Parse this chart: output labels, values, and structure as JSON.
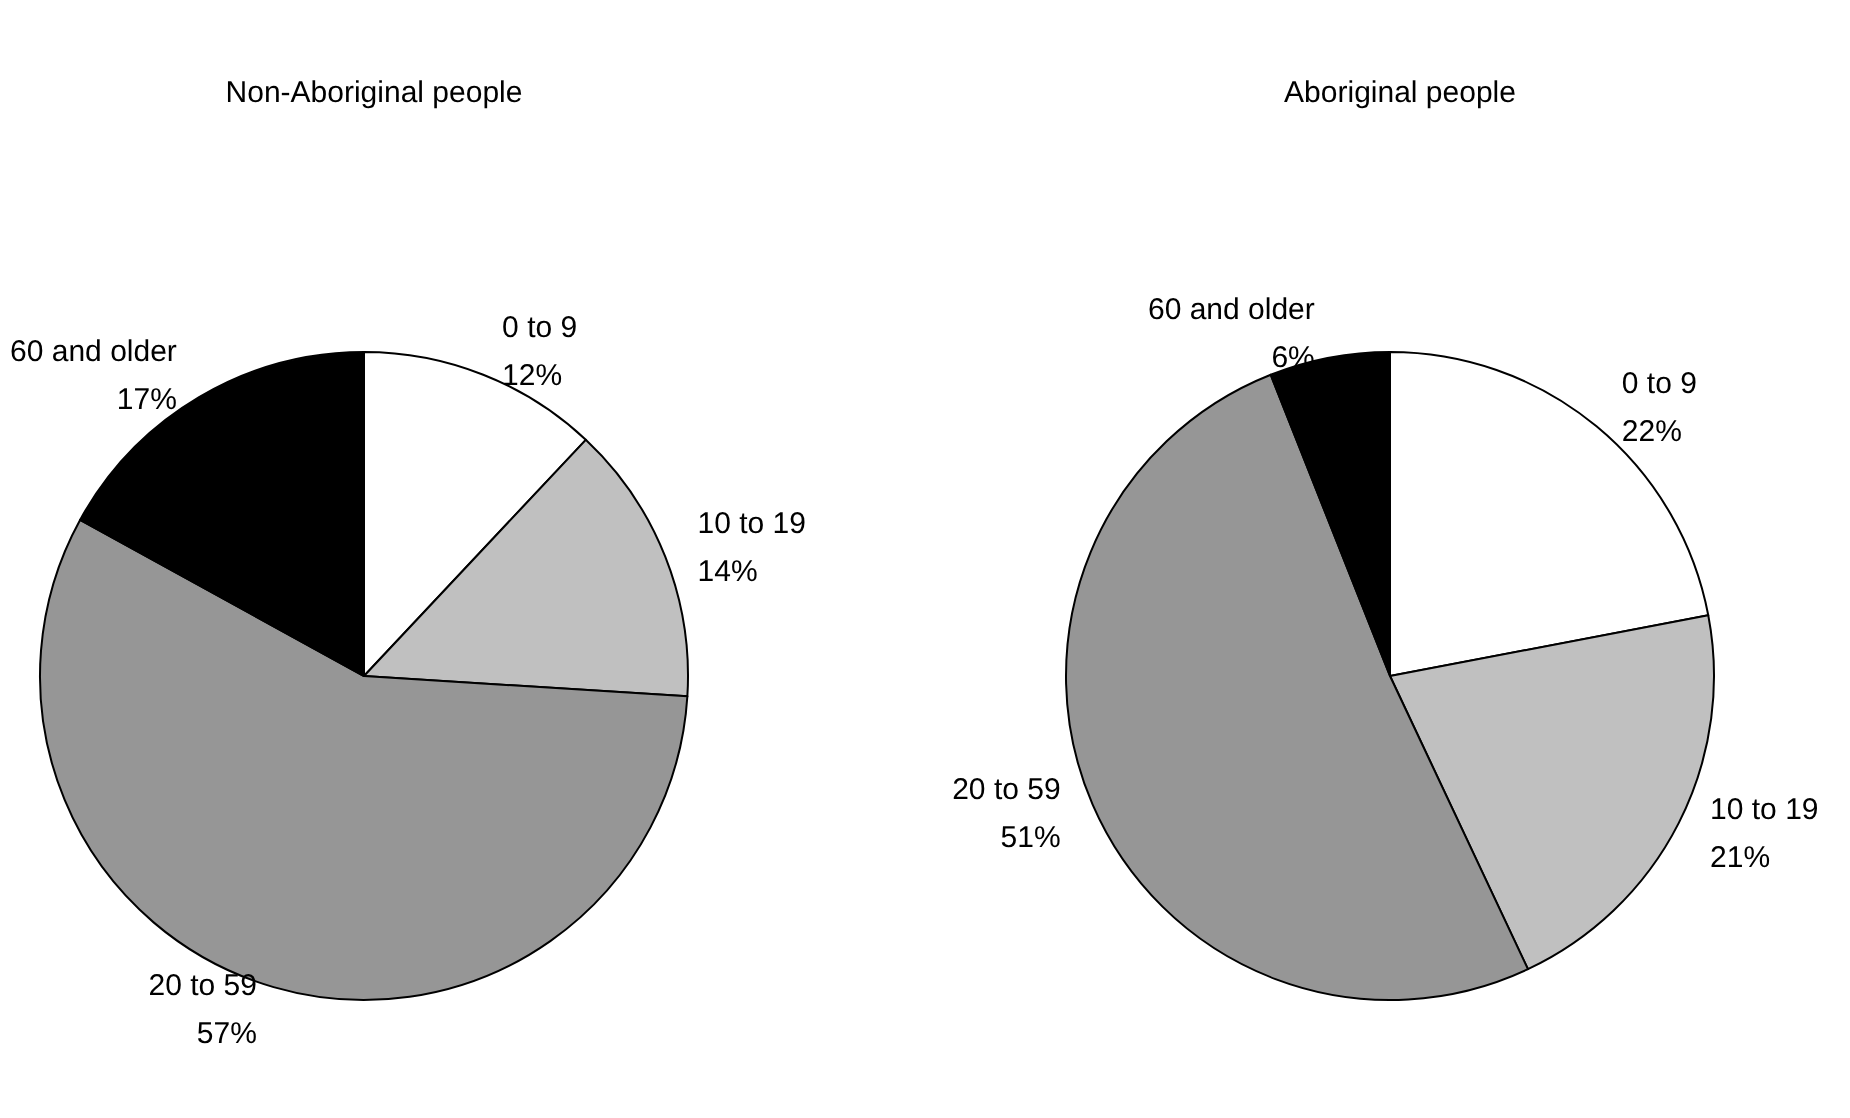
{
  "chart_data": [
    {
      "type": "pie",
      "title": "Non-Aboriginal people",
      "categories": [
        "0 to 9",
        "10 to 19",
        "20 to 59",
        "60 and older"
      ],
      "values": [
        12,
        14,
        57,
        17
      ],
      "value_labels": [
        "12%",
        "14%",
        "57%",
        "17%"
      ],
      "colors": [
        "#ffffff",
        "#c0c0c0",
        "#969696",
        "#000000"
      ]
    },
    {
      "type": "pie",
      "title": "Aboriginal people",
      "categories": [
        "0 to 9",
        "10 to 19",
        "20 to 59",
        "60 and older"
      ],
      "values": [
        22,
        21,
        51,
        6
      ],
      "value_labels": [
        "22%",
        "21%",
        "51%",
        "6%"
      ],
      "colors": [
        "#ffffff",
        "#c0c0c0",
        "#969696",
        "#000000"
      ]
    }
  ]
}
